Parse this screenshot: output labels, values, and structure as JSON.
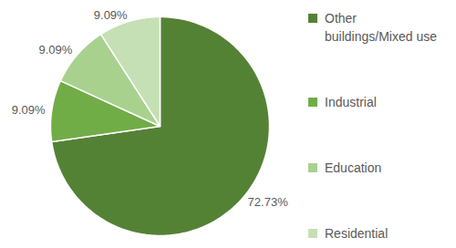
{
  "chart_data": {
    "type": "pie",
    "categories": [
      "Other buildings/Mixed use",
      "Industrial",
      "Education",
      "Residential"
    ],
    "values": [
      72.73,
      9.09,
      9.09,
      9.09
    ],
    "value_labels": [
      "72.73%",
      "9.09%",
      "9.09%",
      "9.09%"
    ],
    "colors": [
      "#548235",
      "#70ad47",
      "#a9d18e",
      "#c5e0b4"
    ],
    "data_labels": true,
    "legend": "right"
  }
}
